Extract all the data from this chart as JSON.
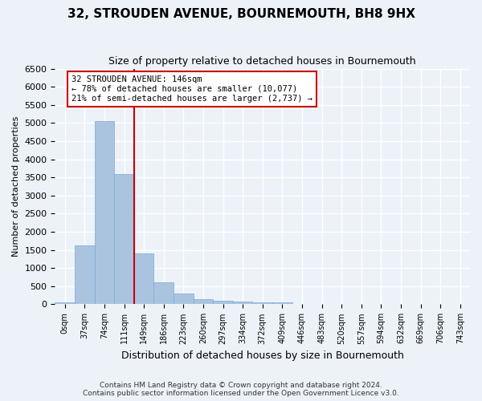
{
  "title": "32, STROUDEN AVENUE, BOURNEMOUTH, BH8 9HX",
  "subtitle": "Size of property relative to detached houses in Bournemouth",
  "xlabel": "Distribution of detached houses by size in Bournemouth",
  "ylabel": "Number of detached properties",
  "footer_line1": "Contains HM Land Registry data © Crown copyright and database right 2024.",
  "footer_line2": "Contains public sector information licensed under the Open Government Licence v3.0.",
  "bin_labels": [
    "0sqm",
    "37sqm",
    "74sqm",
    "111sqm",
    "149sqm",
    "186sqm",
    "223sqm",
    "260sqm",
    "297sqm",
    "334sqm",
    "372sqm",
    "409sqm",
    "446sqm",
    "483sqm",
    "520sqm",
    "557sqm",
    "594sqm",
    "632sqm",
    "669sqm",
    "706sqm",
    "743sqm"
  ],
  "bar_values": [
    65,
    1630,
    5060,
    3600,
    1400,
    610,
    290,
    140,
    100,
    75,
    55,
    55,
    0,
    0,
    0,
    0,
    0,
    0,
    0,
    0,
    0
  ],
  "bar_color": "#aac4e0",
  "bar_edge_color": "#7aaad0",
  "background_color": "#edf2f9",
  "grid_color": "#ffffff",
  "property_label": "32 STROUDEN AVENUE: 146sqm",
  "pct_smaller": "78% of detached houses are smaller (10,077)",
  "pct_larger": "21% of semi-detached houses are larger (2,737)",
  "vline_color": "#cc0000",
  "annotation_box_color": "#cc0000",
  "ylim": [
    0,
    6500
  ],
  "yticks": [
    0,
    500,
    1000,
    1500,
    2000,
    2500,
    3000,
    3500,
    4000,
    4500,
    5000,
    5500,
    6000,
    6500
  ],
  "vline_x": 3.5
}
